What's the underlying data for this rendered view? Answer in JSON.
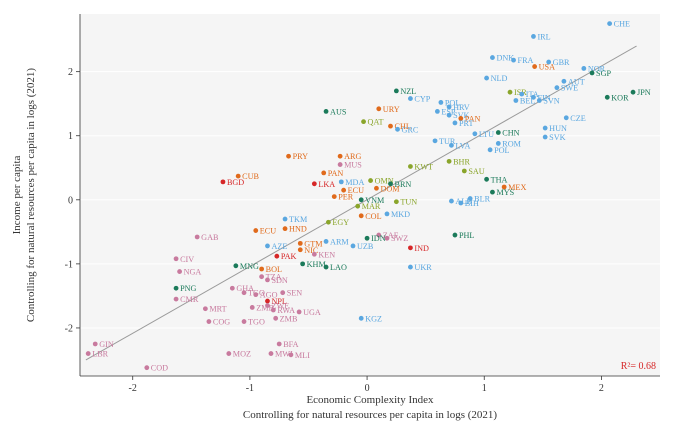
{
  "chart_data": {
    "type": "scatter",
    "title": "",
    "xlabel_line1": "Economic Complexity Index",
    "xlabel_line2": "Controlling for natural resources per capita in logs (2021)",
    "ylabel_line1": "Income per capita",
    "ylabel_line2": "Controlling for natural resources per capita in logs (2021)",
    "xlim": [
      -2.45,
      2.5
    ],
    "ylim": [
      -2.75,
      2.9
    ],
    "xticks": [
      -2,
      -1,
      0,
      1,
      2
    ],
    "yticks": [
      -2,
      -1,
      0,
      1,
      2
    ],
    "xtick_labels": [
      "-2",
      "-1",
      "0",
      "1",
      "2"
    ],
    "ytick_labels": [
      "-2",
      "-1",
      "0",
      "1",
      "2"
    ],
    "r2_label": "R²= 0.68",
    "fit_line": {
      "x": [
        -2.4,
        2.3
      ],
      "y": [
        -2.5,
        2.4
      ]
    },
    "region_colors": {
      "europe": "#5aa7e0",
      "asia": "#1b7a5a",
      "americas": "#e06a1b",
      "africa": "#c87a9e",
      "mena": "#8aa52b",
      "oceania": "#1b7a5a",
      "southasia": "#d62728"
    },
    "points": [
      {
        "label": "CHE",
        "x": 2.07,
        "y": 2.75,
        "region": "europe"
      },
      {
        "label": "IRL",
        "x": 1.42,
        "y": 2.55,
        "region": "europe"
      },
      {
        "label": "DNK",
        "x": 1.07,
        "y": 2.22,
        "region": "europe"
      },
      {
        "label": "FRA",
        "x": 1.25,
        "y": 2.18,
        "region": "europe"
      },
      {
        "label": "GBR",
        "x": 1.55,
        "y": 2.15,
        "region": "europe"
      },
      {
        "label": "USA",
        "x": 1.43,
        "y": 2.08,
        "region": "americas"
      },
      {
        "label": "NOR",
        "x": 1.85,
        "y": 2.05,
        "region": "europe"
      },
      {
        "label": "SGP",
        "x": 1.92,
        "y": 1.98,
        "region": "asia"
      },
      {
        "label": "NLD",
        "x": 1.02,
        "y": 1.9,
        "region": "europe"
      },
      {
        "label": "AUT",
        "x": 1.68,
        "y": 1.85,
        "region": "europe"
      },
      {
        "label": "SWE",
        "x": 1.62,
        "y": 1.75,
        "region": "europe"
      },
      {
        "label": "JPN",
        "x": 2.27,
        "y": 1.68,
        "region": "asia"
      },
      {
        "label": "ISR",
        "x": 1.22,
        "y": 1.68,
        "region": "mena"
      },
      {
        "label": "ITA",
        "x": 1.32,
        "y": 1.65,
        "region": "europe"
      },
      {
        "label": "FIN",
        "x": 1.42,
        "y": 1.6,
        "region": "europe"
      },
      {
        "label": "SVN",
        "x": 1.47,
        "y": 1.55,
        "region": "europe"
      },
      {
        "label": "BEL",
        "x": 1.27,
        "y": 1.55,
        "region": "europe"
      },
      {
        "label": "KOR",
        "x": 2.05,
        "y": 1.6,
        "region": "asia"
      },
      {
        "label": "NZL",
        "x": 0.25,
        "y": 1.7,
        "region": "asia"
      },
      {
        "label": "CYP",
        "x": 0.37,
        "y": 1.58,
        "region": "europe"
      },
      {
        "label": "AUS",
        "x": -0.35,
        "y": 1.38,
        "region": "asia"
      },
      {
        "label": "URY",
        "x": 0.1,
        "y": 1.42,
        "region": "americas"
      },
      {
        "label": "POL",
        "x": 0.63,
        "y": 1.52,
        "region": "europe"
      },
      {
        "label": "HRV",
        "x": 0.7,
        "y": 1.45,
        "region": "europe"
      },
      {
        "label": "ESP",
        "x": 0.6,
        "y": 1.38,
        "region": "europe"
      },
      {
        "label": "SVK",
        "x": 0.7,
        "y": 1.32,
        "region": "europe"
      },
      {
        "label": "PAN",
        "x": 0.8,
        "y": 1.27,
        "region": "americas"
      },
      {
        "label": "PRT",
        "x": 0.75,
        "y": 1.2,
        "region": "europe"
      },
      {
        "label": "CZE",
        "x": 1.7,
        "y": 1.28,
        "region": "europe"
      },
      {
        "label": "QAT",
        "x": -0.03,
        "y": 1.22,
        "region": "mena"
      },
      {
        "label": "CHL",
        "x": 0.2,
        "y": 1.15,
        "region": "americas"
      },
      {
        "label": "GRC",
        "x": 0.26,
        "y": 1.1,
        "region": "europe"
      },
      {
        "label": "HUN",
        "x": 1.52,
        "y": 1.12,
        "region": "europe"
      },
      {
        "label": "SVK2",
        "x": 1.52,
        "y": 0.98,
        "region": "europe"
      },
      {
        "label": "LTU",
        "x": 0.92,
        "y": 1.03,
        "region": "europe"
      },
      {
        "label": "CHN",
        "x": 1.12,
        "y": 1.05,
        "region": "asia"
      },
      {
        "label": "TUR",
        "x": 0.58,
        "y": 0.92,
        "region": "europe"
      },
      {
        "label": "LVA",
        "x": 0.72,
        "y": 0.85,
        "region": "europe"
      },
      {
        "label": "ROM",
        "x": 1.12,
        "y": 0.88,
        "region": "europe"
      },
      {
        "label": "POL2",
        "x": 1.05,
        "y": 0.78,
        "region": "europe"
      },
      {
        "label": "PRY",
        "x": -0.67,
        "y": 0.68,
        "region": "americas"
      },
      {
        "label": "ARG",
        "x": -0.23,
        "y": 0.68,
        "region": "americas"
      },
      {
        "label": "BHR",
        "x": 0.7,
        "y": 0.6,
        "region": "mena"
      },
      {
        "label": "MUS",
        "x": -0.23,
        "y": 0.55,
        "region": "africa"
      },
      {
        "label": "KWT",
        "x": 0.37,
        "y": 0.52,
        "region": "mena"
      },
      {
        "label": "SAU",
        "x": 0.83,
        "y": 0.45,
        "region": "mena"
      },
      {
        "label": "PAN2",
        "x": -0.37,
        "y": 0.42,
        "region": "americas"
      },
      {
        "label": "CUB",
        "x": -1.1,
        "y": 0.37,
        "region": "americas"
      },
      {
        "label": "THA",
        "x": 1.02,
        "y": 0.32,
        "region": "asia"
      },
      {
        "label": "OMN",
        "x": 0.03,
        "y": 0.3,
        "region": "mena"
      },
      {
        "label": "BGD",
        "x": -1.23,
        "y": 0.28,
        "region": "southasia"
      },
      {
        "label": "MDA",
        "x": -0.22,
        "y": 0.28,
        "region": "europe"
      },
      {
        "label": "BRN",
        "x": 0.2,
        "y": 0.25,
        "region": "asia"
      },
      {
        "label": "LKA",
        "x": -0.45,
        "y": 0.25,
        "region": "southasia"
      },
      {
        "label": "MEX",
        "x": 1.17,
        "y": 0.2,
        "region": "americas"
      },
      {
        "label": "DOM",
        "x": 0.08,
        "y": 0.18,
        "region": "americas"
      },
      {
        "label": "ECU",
        "x": -0.2,
        "y": 0.15,
        "region": "americas"
      },
      {
        "label": "MYS",
        "x": 1.07,
        "y": 0.12,
        "region": "asia"
      },
      {
        "label": "PER",
        "x": -0.28,
        "y": 0.05,
        "region": "americas"
      },
      {
        "label": "VNM",
        "x": -0.05,
        "y": 0.0,
        "region": "asia"
      },
      {
        "label": "BLR",
        "x": 0.88,
        "y": 0.02,
        "region": "europe"
      },
      {
        "label": "TUN",
        "x": 0.25,
        "y": -0.03,
        "region": "mena"
      },
      {
        "label": "BIH",
        "x": 0.8,
        "y": -0.05,
        "region": "europe"
      },
      {
        "label": "ALB",
        "x": 0.72,
        "y": -0.02,
        "region": "europe"
      },
      {
        "label": "MAR",
        "x": -0.08,
        "y": -0.1,
        "region": "mena"
      },
      {
        "label": "MKD",
        "x": 0.17,
        "y": -0.22,
        "region": "europe"
      },
      {
        "label": "COL",
        "x": -0.05,
        "y": -0.25,
        "region": "americas"
      },
      {
        "label": "TKM",
        "x": -0.7,
        "y": -0.3,
        "region": "europe"
      },
      {
        "label": "EGY",
        "x": -0.33,
        "y": -0.35,
        "region": "mena"
      },
      {
        "label": "ECU2",
        "x": -0.95,
        "y": -0.48,
        "region": "americas"
      },
      {
        "label": "HND",
        "x": -0.7,
        "y": -0.45,
        "region": "americas"
      },
      {
        "label": "GAB",
        "x": -1.45,
        "y": -0.58,
        "region": "africa"
      },
      {
        "label": "PHL",
        "x": 0.75,
        "y": -0.55,
        "region": "asia"
      },
      {
        "label": "ZAF",
        "x": 0.1,
        "y": -0.55,
        "region": "africa"
      },
      {
        "label": "SWZ",
        "x": 0.17,
        "y": -0.6,
        "region": "africa"
      },
      {
        "label": "IDN",
        "x": 0.0,
        "y": -0.6,
        "region": "asia"
      },
      {
        "label": "ARM",
        "x": -0.35,
        "y": -0.65,
        "region": "europe"
      },
      {
        "label": "AZE",
        "x": -0.85,
        "y": -0.72,
        "region": "europe"
      },
      {
        "label": "GTM",
        "x": -0.57,
        "y": -0.68,
        "region": "americas"
      },
      {
        "label": "UZB",
        "x": -0.12,
        "y": -0.72,
        "region": "europe"
      },
      {
        "label": "IND",
        "x": 0.37,
        "y": -0.75,
        "region": "southasia"
      },
      {
        "label": "NIC",
        "x": -0.57,
        "y": -0.78,
        "region": "americas"
      },
      {
        "label": "KEN",
        "x": -0.45,
        "y": -0.85,
        "region": "africa"
      },
      {
        "label": "PAK",
        "x": -0.77,
        "y": -0.88,
        "region": "southasia"
      },
      {
        "label": "CIV",
        "x": -1.63,
        "y": -0.92,
        "region": "africa"
      },
      {
        "label": "KHM",
        "x": -0.55,
        "y": -1.0,
        "region": "asia"
      },
      {
        "label": "LAO",
        "x": -0.35,
        "y": -1.05,
        "region": "asia"
      },
      {
        "label": "MNG",
        "x": -1.12,
        "y": -1.03,
        "region": "asia"
      },
      {
        "label": "UKR",
        "x": 0.37,
        "y": -1.05,
        "region": "europe"
      },
      {
        "label": "BOL",
        "x": -0.9,
        "y": -1.08,
        "region": "americas"
      },
      {
        "label": "NGA",
        "x": -1.6,
        "y": -1.12,
        "region": "africa"
      },
      {
        "label": "TZA",
        "x": -0.9,
        "y": -1.2,
        "region": "africa"
      },
      {
        "label": "SDN",
        "x": -0.85,
        "y": -1.25,
        "region": "africa"
      },
      {
        "label": "PNG",
        "x": -1.63,
        "y": -1.38,
        "region": "oceania"
      },
      {
        "label": "GHA",
        "x": -1.15,
        "y": -1.38,
        "region": "africa"
      },
      {
        "label": "SEN",
        "x": -0.72,
        "y": -1.45,
        "region": "africa"
      },
      {
        "label": "TGO2",
        "x": -1.05,
        "y": -1.45,
        "region": "africa"
      },
      {
        "label": "AGO",
        "x": -0.95,
        "y": -1.48,
        "region": "africa"
      },
      {
        "label": "CMR",
        "x": -1.63,
        "y": -1.55,
        "region": "africa"
      },
      {
        "label": "NPL",
        "x": -0.85,
        "y": -1.58,
        "region": "southasia"
      },
      {
        "label": "ZWE",
        "x": -0.85,
        "y": -1.65,
        "region": "africa"
      },
      {
        "label": "MRT",
        "x": -1.38,
        "y": -1.7,
        "region": "africa"
      },
      {
        "label": "ZMB2",
        "x": -0.98,
        "y": -1.68,
        "region": "africa"
      },
      {
        "label": "UGA",
        "x": -0.58,
        "y": -1.75,
        "region": "africa"
      },
      {
        "label": "RWA",
        "x": -0.8,
        "y": -1.72,
        "region": "africa"
      },
      {
        "label": "COG",
        "x": -1.35,
        "y": -1.9,
        "region": "africa"
      },
      {
        "label": "TGO",
        "x": -1.05,
        "y": -1.9,
        "region": "africa"
      },
      {
        "label": "ZMB",
        "x": -0.78,
        "y": -1.85,
        "region": "africa"
      },
      {
        "label": "KGZ",
        "x": -0.05,
        "y": -1.85,
        "region": "europe"
      },
      {
        "label": "GIN",
        "x": -2.32,
        "y": -2.25,
        "region": "africa"
      },
      {
        "label": "BFA",
        "x": -0.75,
        "y": -2.25,
        "region": "africa"
      },
      {
        "label": "LBR",
        "x": -2.38,
        "y": -2.4,
        "region": "africa"
      },
      {
        "label": "MOZ",
        "x": -1.18,
        "y": -2.4,
        "region": "africa"
      },
      {
        "label": "MWI",
        "x": -0.82,
        "y": -2.4,
        "region": "africa"
      },
      {
        "label": "MLI",
        "x": -0.65,
        "y": -2.42,
        "region": "africa"
      },
      {
        "label": "COD",
        "x": -1.88,
        "y": -2.62,
        "region": "africa"
      }
    ]
  }
}
